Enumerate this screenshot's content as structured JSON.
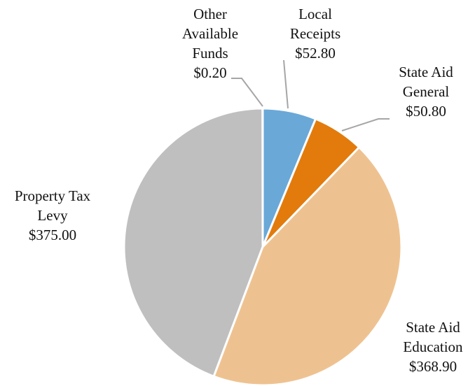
{
  "chart_data": {
    "type": "pie",
    "categories": [
      "Local Receipts",
      "State Aid General",
      "State Aid Education",
      "Property Tax Levy",
      "Other Available Funds"
    ],
    "values": [
      52.8,
      50.8,
      368.9,
      375.0,
      0.2
    ],
    "value_labels": [
      "$52.80",
      "$50.80",
      "$368.90",
      "$375.00",
      "$0.20"
    ],
    "colors": [
      "#6aa8d8",
      "#e27b0c",
      "#eec290",
      "#bfbfbf",
      "#4f7fbf"
    ]
  }
}
